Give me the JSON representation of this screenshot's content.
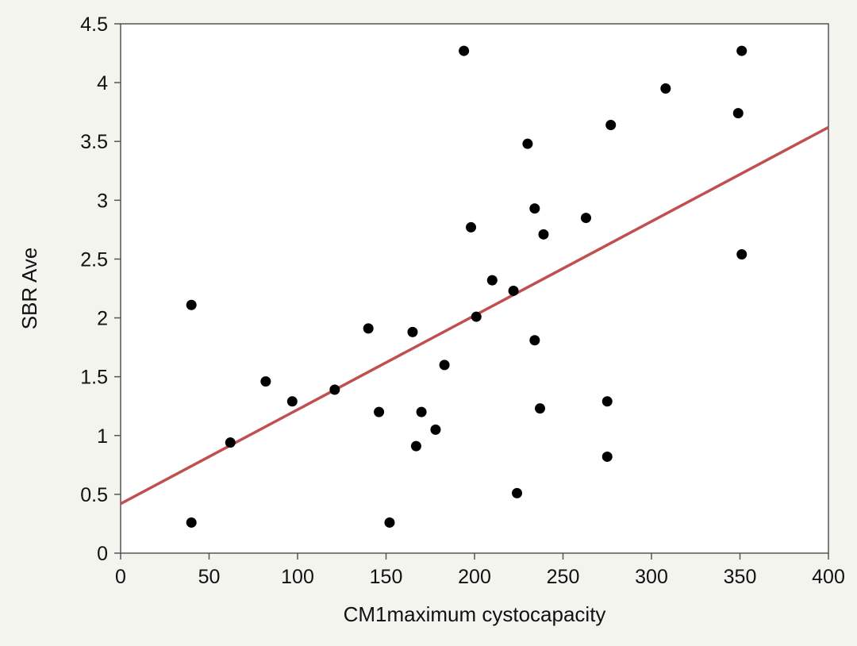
{
  "chart_data": {
    "type": "scatter",
    "title": "",
    "xlabel": "CM1maximum cystocapacity",
    "ylabel": "SBR Ave",
    "xlim": [
      0,
      400
    ],
    "ylim": [
      0,
      4.5
    ],
    "xticks": [
      0,
      50,
      100,
      150,
      200,
      250,
      300,
      350,
      400
    ],
    "yticks": [
      0,
      0.5,
      1,
      1.5,
      2,
      2.5,
      3,
      3.5,
      4,
      4.5
    ],
    "xtick_labels": [
      "0",
      "50",
      "100",
      "150",
      "200",
      "250",
      "300",
      "350",
      "400"
    ],
    "ytick_labels": [
      "0",
      "0.5",
      "1",
      "1.5",
      "2",
      "2.5",
      "3",
      "3.5",
      "4",
      "4.5"
    ],
    "grid": false,
    "legend": "none",
    "colors": {
      "background": "#f4f4ef",
      "plot_background": "#ffffff",
      "points": "#000000",
      "fit_line": "#c05050",
      "axis": "#555555"
    },
    "points": [
      {
        "x": 40,
        "y": 2.11
      },
      {
        "x": 40,
        "y": 0.26
      },
      {
        "x": 62,
        "y": 0.94
      },
      {
        "x": 82,
        "y": 1.46
      },
      {
        "x": 97,
        "y": 1.29
      },
      {
        "x": 121,
        "y": 1.39
      },
      {
        "x": 140,
        "y": 1.91
      },
      {
        "x": 146,
        "y": 1.2
      },
      {
        "x": 152,
        "y": 0.26
      },
      {
        "x": 165,
        "y": 1.88
      },
      {
        "x": 167,
        "y": 0.91
      },
      {
        "x": 170,
        "y": 1.2
      },
      {
        "x": 178,
        "y": 1.05
      },
      {
        "x": 183,
        "y": 1.6
      },
      {
        "x": 194,
        "y": 4.27
      },
      {
        "x": 198,
        "y": 2.77
      },
      {
        "x": 201,
        "y": 2.01
      },
      {
        "x": 210,
        "y": 2.32
      },
      {
        "x": 222,
        "y": 2.23
      },
      {
        "x": 224,
        "y": 0.51
      },
      {
        "x": 230,
        "y": 3.48
      },
      {
        "x": 234,
        "y": 2.93
      },
      {
        "x": 234,
        "y": 1.81
      },
      {
        "x": 237,
        "y": 1.23
      },
      {
        "x": 239,
        "y": 2.71
      },
      {
        "x": 263,
        "y": 2.85
      },
      {
        "x": 275,
        "y": 1.29
      },
      {
        "x": 275,
        "y": 0.82
      },
      {
        "x": 277,
        "y": 3.64
      },
      {
        "x": 308,
        "y": 3.95
      },
      {
        "x": 349,
        "y": 3.74
      },
      {
        "x": 351,
        "y": 4.27
      },
      {
        "x": 351,
        "y": 2.54
      }
    ],
    "fit_line": {
      "x": [
        0,
        400
      ],
      "y": [
        0.42,
        3.62
      ]
    }
  }
}
